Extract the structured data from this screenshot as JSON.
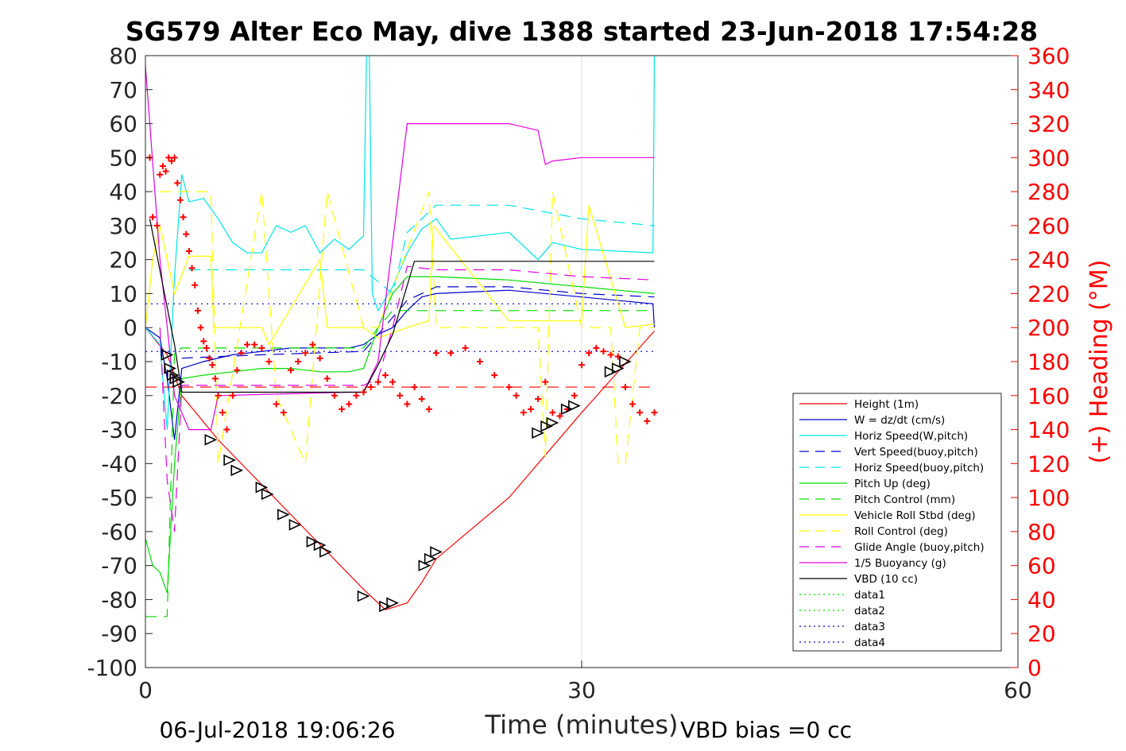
{
  "title": "SG579 Alter Eco May, dive 1388 started 23-Jun-2018 17:54:28",
  "footer": {
    "date": "06-Jul-2018 19:06:26",
    "vbd_bias": "VBD bias =0 cc"
  },
  "chart_data": {
    "type": "line",
    "xlabel": "Time (minutes)",
    "ylabel": "",
    "ylabel_right": "(+) Heading (°M)",
    "xlim": [
      0,
      60
    ],
    "ylim": [
      -100,
      80
    ],
    "ylim_right": [
      0,
      360
    ],
    "xticks": [
      "0",
      "30",
      "60"
    ],
    "yticks": [
      "80",
      "70",
      "60",
      "50",
      "40",
      "30",
      "20",
      "10",
      "0",
      "-10",
      "-20",
      "-30",
      "-40",
      "-50",
      "-60",
      "-70",
      "-80",
      "-90",
      "-100"
    ],
    "yticks_right": [
      "360",
      "340",
      "320",
      "300",
      "280",
      "260",
      "240",
      "220",
      "200",
      "180",
      "160",
      "140",
      "120",
      "100",
      "80",
      "60",
      "40",
      "20",
      "0"
    ],
    "grid": "x-only",
    "legend_position": "lower-right",
    "series": [
      {
        "name": "Height (1m)",
        "color": "#ff0000",
        "style": "solid",
        "x": [
          0,
          1.5,
          2.5,
          5,
          10,
          15,
          16.5,
          18,
          19,
          20,
          25,
          30,
          35
        ],
        "y": [
          0,
          -8,
          -20,
          -33,
          -55,
          -77,
          -83,
          -81,
          -75,
          -68,
          -50,
          -25,
          -1
        ]
      },
      {
        "name": "W = dz/dt (cm/s)",
        "color": "#0000cc",
        "style": "solid",
        "x": [
          0,
          1,
          1.5,
          2,
          2.5,
          4,
          6,
          8,
          10,
          12,
          14,
          15,
          16,
          17,
          18,
          19,
          20,
          25,
          30,
          34.9,
          35
        ],
        "y": [
          0,
          -3,
          -15,
          -33,
          -12,
          -10,
          -8,
          -7,
          -6,
          -6,
          -6,
          -5,
          -2,
          0,
          5,
          9,
          10,
          11,
          9,
          7,
          0
        ]
      },
      {
        "name": "Horiz Speed(W,pitch)",
        "color": "#00e5e5",
        "style": "solid",
        "x": [
          0,
          1,
          1.5,
          2,
          2.5,
          3,
          4,
          5,
          6,
          7,
          8,
          9,
          10,
          11,
          12,
          13,
          14,
          15,
          15.2,
          15.4,
          15.6,
          16,
          17,
          18,
          19,
          20,
          21,
          25,
          27,
          28,
          30,
          34.9,
          35
        ],
        "y": [
          0,
          -5,
          -30,
          15,
          45,
          37,
          38,
          32,
          25,
          22,
          22,
          30,
          28,
          30,
          22,
          26,
          23,
          27,
          80,
          80,
          10,
          5,
          12,
          22,
          29,
          32,
          26,
          28,
          20,
          25,
          23,
          22,
          80
        ]
      },
      {
        "name": "Vert Speed(buoy,pitch)",
        "color": "#0000cc",
        "style": "dash",
        "x": [
          2.5,
          8,
          15,
          17,
          18,
          20,
          25,
          30,
          35
        ],
        "y": [
          -9,
          -8,
          -7,
          3,
          8,
          12,
          12,
          10,
          9
        ]
      },
      {
        "name": "Horiz Speed(buoy,pitch)",
        "color": "#00e5e5",
        "style": "dash",
        "x": [
          3,
          8,
          15,
          17,
          18,
          20,
          25,
          30,
          35
        ],
        "y": [
          17,
          17,
          17,
          10,
          28,
          36,
          36,
          32,
          30
        ]
      },
      {
        "name": "Pitch Up (deg)",
        "color": "#00dd00",
        "style": "solid",
        "x": [
          0,
          0.5,
          1,
          1.5,
          2,
          2.5,
          4,
          6,
          8,
          10,
          12,
          14,
          15,
          16,
          17,
          18,
          20,
          25,
          30,
          35
        ],
        "y": [
          -62,
          -70,
          -72,
          -78,
          -40,
          -15,
          -14,
          -13,
          -12,
          -12,
          -13,
          -13,
          -12,
          0,
          10,
          15,
          15,
          14,
          12,
          10
        ]
      },
      {
        "name": "Pitch Control (mm)",
        "color": "#00dd00",
        "style": "dash",
        "x": [
          0,
          1,
          1.5,
          2,
          2.5,
          15,
          16,
          17,
          18,
          35
        ],
        "y": [
          -85,
          -85,
          -85,
          -7,
          -6,
          -6,
          0,
          5,
          5,
          5
        ]
      },
      {
        "name": "Vehicle Roll Stbd (deg)",
        "color": "#ffff00",
        "style": "solid",
        "x": [
          0,
          0.5,
          1,
          2,
          3,
          4.5,
          4.7,
          8,
          8.5,
          12,
          12.5,
          15,
          16,
          18,
          19.5,
          19.8,
          25,
          30,
          30.5,
          33,
          35
        ],
        "y": [
          0,
          20,
          30,
          10,
          21,
          21,
          0,
          0,
          -5,
          20,
          0,
          0,
          -3,
          0,
          2,
          30,
          2,
          2,
          36,
          0,
          1
        ]
      },
      {
        "name": "Roll Control (deg)",
        "color": "#ffff00",
        "style": "dash",
        "x": [
          1,
          2,
          3,
          4.5,
          5,
          8,
          9,
          11,
          12.5,
          15,
          16,
          19.5,
          20,
          27,
          27.5,
          28,
          30,
          32,
          32.5,
          33,
          34,
          35
        ],
        "y": [
          40,
          40,
          40,
          40,
          -40,
          40,
          -20,
          -40,
          40,
          0,
          0,
          40,
          0,
          0,
          -38,
          40,
          0,
          0,
          -40,
          -40,
          0,
          0
        ]
      },
      {
        "name": "Glide Angle (buoy,pitch)",
        "color": "#e000e0",
        "style": "dash",
        "x": [
          1,
          1.5,
          2,
          2.5,
          15,
          16,
          17,
          18,
          20,
          25,
          30,
          35
        ],
        "y": [
          0,
          -45,
          -60,
          -17,
          -17,
          -15,
          0,
          18,
          17,
          17,
          15,
          14
        ]
      },
      {
        "name": "1/5 Buoyancy (g)",
        "color": "#e000e0",
        "style": "solid",
        "x": [
          0,
          0.3,
          1,
          2,
          3,
          4,
          4.5,
          5,
          14,
          15,
          16,
          18,
          20,
          23,
          25,
          27,
          27.5,
          28,
          30,
          35
        ],
        "y": [
          77,
          60,
          20,
          -20,
          -30,
          -30,
          -30,
          -20,
          -19,
          -19,
          -10,
          60,
          60,
          60,
          60,
          58,
          48,
          49,
          50,
          50
        ]
      },
      {
        "name": "VBD (10 cc)",
        "color": "#000000",
        "style": "solid",
        "x": [
          0.3,
          2,
          2.5,
          15,
          16,
          17,
          18.5,
          35
        ],
        "y": [
          32,
          -5,
          -19,
          -19,
          -11,
          -2,
          19.5,
          19.5
        ]
      },
      {
        "name": "data1",
        "color": "#00e000",
        "style": "dot",
        "x": [],
        "y": []
      },
      {
        "name": "data2",
        "color": "#00e000",
        "style": "dot",
        "x": [],
        "y": []
      },
      {
        "name": "data3",
        "color": "#0000cc",
        "style": "dot",
        "x": [
          0,
          35
        ],
        "y": [
          7,
          7
        ]
      },
      {
        "name": "data4",
        "color": "#0000cc",
        "style": "dot",
        "x": [
          0,
          35
        ],
        "y": [
          -7,
          -7
        ]
      }
    ],
    "heading_line": {
      "color": "#ff0000",
      "style": "dash",
      "y_right": 165,
      "x": [
        0,
        35
      ]
    },
    "heading_points": {
      "color": "#ff0000",
      "axis": "right",
      "x": [
        0.3,
        0.5,
        0.8,
        1,
        1.2,
        1.4,
        1.6,
        1.8,
        2,
        2.2,
        2.4,
        2.6,
        2.8,
        3,
        3.2,
        3.4,
        3.6,
        3.8,
        4,
        4.2,
        4.4,
        4.6,
        4.8,
        5,
        5.3,
        5.6,
        6,
        6.3,
        6.6,
        7,
        7.5,
        8,
        8.5,
        9,
        9.5,
        10,
        10.5,
        11,
        11.5,
        12,
        12.5,
        13,
        13.5,
        14,
        14.5,
        15,
        15.5,
        16,
        16.5,
        17,
        17.5,
        18,
        18.5,
        19,
        19.5,
        20,
        21,
        22,
        23,
        24,
        25,
        25.5,
        26,
        26.5,
        27,
        27.5,
        28,
        28.5,
        29,
        29.5,
        30,
        30.5,
        31,
        31.5,
        32,
        32.5,
        33,
        33.5,
        34,
        34.5,
        35
      ],
      "y": [
        300,
        265,
        260,
        290,
        295,
        292,
        300,
        298,
        300,
        285,
        275,
        265,
        255,
        245,
        235,
        225,
        210,
        200,
        192,
        188,
        182,
        178,
        170,
        160,
        150,
        140,
        160,
        175,
        185,
        190,
        190,
        188,
        180,
        155,
        150,
        175,
        180,
        185,
        190,
        182,
        170,
        160,
        152,
        155,
        160,
        162,
        165,
        168,
        172,
        168,
        160,
        155,
        165,
        158,
        152,
        185,
        185,
        188,
        180,
        172,
        165,
        160,
        150,
        152,
        158,
        168,
        150,
        148,
        152,
        160,
        178,
        185,
        188,
        186,
        184,
        183,
        165,
        155,
        150,
        145,
        150
      ]
    },
    "depth_markers": {
      "color": "#000000",
      "shape": "triangle",
      "x": [
        1.5,
        1.7,
        1.9,
        2.1,
        2.3,
        4.5,
        5.8,
        6.3,
        8,
        8.4,
        9.5,
        10.3,
        11.5,
        12,
        12.4,
        15,
        16.5,
        17,
        19.2,
        19.6,
        20,
        27,
        27.6,
        28,
        29,
        29.5,
        32,
        32.5,
        33
      ],
      "y": [
        -8,
        -12,
        -14,
        -15,
        -16,
        -33,
        -39,
        -42,
        -47,
        -49,
        -55,
        -58,
        -63,
        -64,
        -66,
        -79,
        -82,
        -81,
        -70,
        -68,
        -66,
        -31,
        -29,
        -28,
        -24,
        -23,
        -13,
        -12,
        -10
      ]
    }
  }
}
